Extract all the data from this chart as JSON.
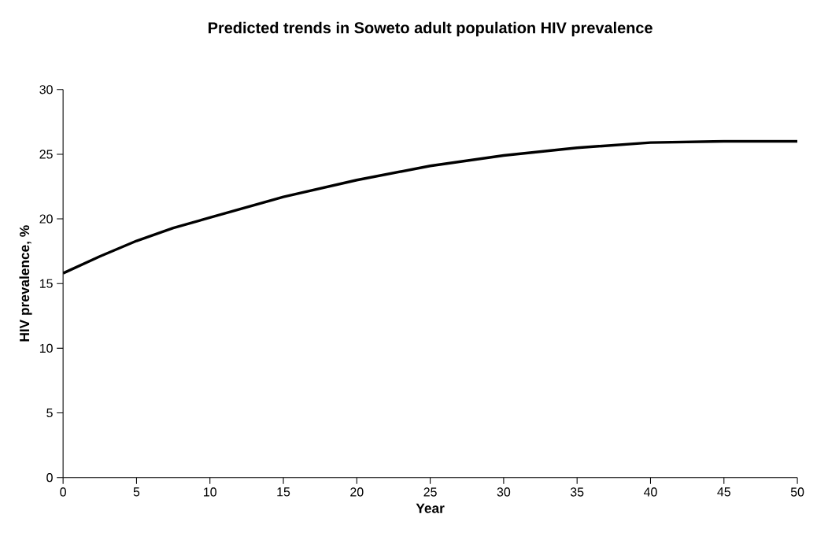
{
  "chart_data": {
    "type": "line",
    "title": "Predicted trends in Soweto adult population HIV prevalence",
    "xlabel": "Year",
    "ylabel": "HIV prevalence, %",
    "x": [
      0,
      2.5,
      5,
      7.5,
      10,
      15,
      20,
      25,
      30,
      35,
      40,
      45,
      50
    ],
    "series": [
      {
        "color": "#000000",
        "values": [
          15.8,
          17.1,
          18.3,
          19.3,
          20.1,
          21.7,
          23.0,
          24.1,
          24.9,
          25.5,
          25.9,
          26.0,
          26.0
        ]
      }
    ],
    "xlim": [
      0,
      50
    ],
    "xticks": [
      0,
      5,
      10,
      15,
      20,
      25,
      30,
      35,
      40,
      45,
      50
    ],
    "ylim": [
      0,
      30
    ],
    "yticks": [
      0,
      5,
      10,
      15,
      20,
      25,
      30
    ],
    "grid": false,
    "marker": "none",
    "line_style": "solid"
  }
}
